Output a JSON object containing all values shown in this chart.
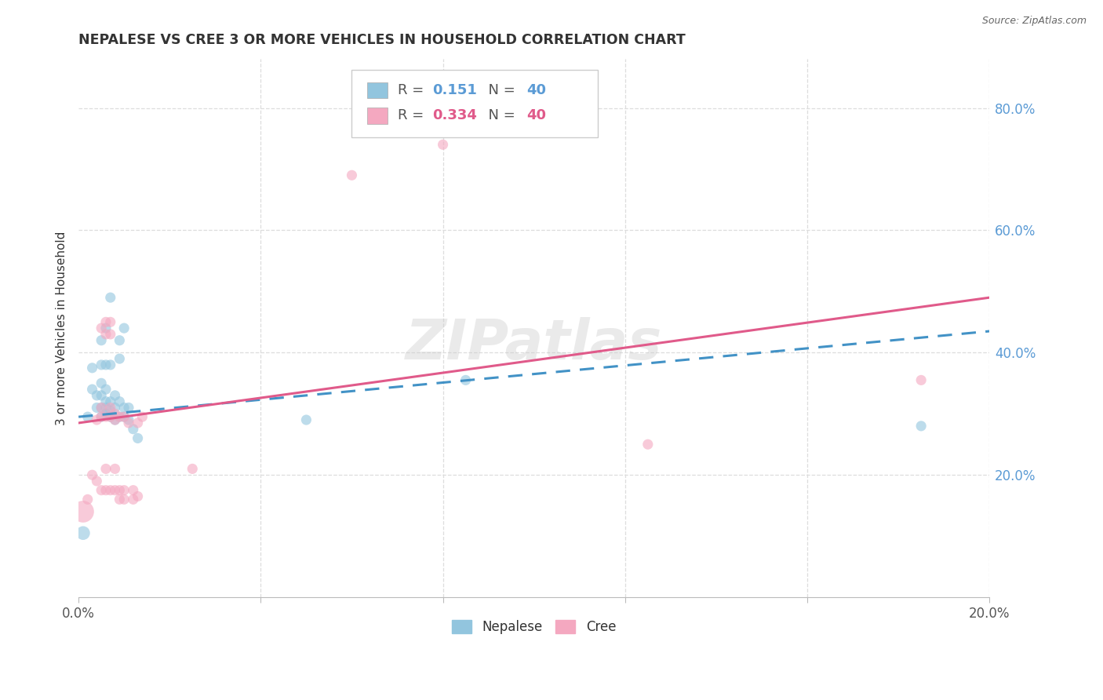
{
  "title": "NEPALESE VS CREE 3 OR MORE VEHICLES IN HOUSEHOLD CORRELATION CHART",
  "source": "Source: ZipAtlas.com",
  "ylabel": "3 or more Vehicles in Household",
  "ytick_labels": [
    "20.0%",
    "40.0%",
    "60.0%",
    "80.0%"
  ],
  "ytick_values": [
    0.2,
    0.4,
    0.6,
    0.8
  ],
  "xmin": 0.0,
  "xmax": 0.2,
  "ymin": 0.0,
  "ymax": 0.88,
  "legend_r_blue": "0.151",
  "legend_r_pink": "0.334",
  "legend_n": "40",
  "blue_color": "#92c5de",
  "pink_color": "#f4a8c0",
  "blue_line_color": "#4292c6",
  "pink_line_color": "#e05a8a",
  "watermark": "ZIPatlas",
  "grid_color": "#dddddd",
  "blue_line_x": [
    0.0,
    0.2
  ],
  "blue_line_y": [
    0.295,
    0.435
  ],
  "pink_line_x": [
    0.0,
    0.2
  ],
  "pink_line_y": [
    0.285,
    0.49
  ],
  "nepalese_points": [
    [
      0.001,
      0.105,
      160
    ],
    [
      0.002,
      0.295,
      90
    ],
    [
      0.003,
      0.34,
      90
    ],
    [
      0.003,
      0.375,
      90
    ],
    [
      0.004,
      0.31,
      90
    ],
    [
      0.004,
      0.33,
      90
    ],
    [
      0.005,
      0.295,
      90
    ],
    [
      0.005,
      0.31,
      90
    ],
    [
      0.005,
      0.33,
      90
    ],
    [
      0.005,
      0.35,
      90
    ],
    [
      0.005,
      0.38,
      90
    ],
    [
      0.005,
      0.42,
      90
    ],
    [
      0.006,
      0.3,
      90
    ],
    [
      0.006,
      0.31,
      90
    ],
    [
      0.006,
      0.32,
      90
    ],
    [
      0.006,
      0.34,
      90
    ],
    [
      0.006,
      0.38,
      90
    ],
    [
      0.006,
      0.44,
      90
    ],
    [
      0.007,
      0.295,
      90
    ],
    [
      0.007,
      0.305,
      90
    ],
    [
      0.007,
      0.32,
      90
    ],
    [
      0.007,
      0.38,
      90
    ],
    [
      0.007,
      0.49,
      90
    ],
    [
      0.008,
      0.29,
      90
    ],
    [
      0.008,
      0.31,
      90
    ],
    [
      0.008,
      0.33,
      90
    ],
    [
      0.009,
      0.295,
      90
    ],
    [
      0.009,
      0.32,
      90
    ],
    [
      0.009,
      0.39,
      90
    ],
    [
      0.009,
      0.42,
      90
    ],
    [
      0.01,
      0.295,
      90
    ],
    [
      0.01,
      0.31,
      90
    ],
    [
      0.01,
      0.44,
      90
    ],
    [
      0.011,
      0.29,
      90
    ],
    [
      0.011,
      0.31,
      90
    ],
    [
      0.012,
      0.275,
      90
    ],
    [
      0.013,
      0.26,
      90
    ],
    [
      0.05,
      0.29,
      90
    ],
    [
      0.085,
      0.355,
      90
    ],
    [
      0.185,
      0.28,
      90
    ]
  ],
  "cree_points": [
    [
      0.001,
      0.14,
      400
    ],
    [
      0.002,
      0.16,
      90
    ],
    [
      0.003,
      0.2,
      90
    ],
    [
      0.004,
      0.19,
      90
    ],
    [
      0.004,
      0.29,
      90
    ],
    [
      0.005,
      0.175,
      90
    ],
    [
      0.005,
      0.295,
      90
    ],
    [
      0.005,
      0.31,
      90
    ],
    [
      0.005,
      0.44,
      90
    ],
    [
      0.006,
      0.175,
      90
    ],
    [
      0.006,
      0.21,
      90
    ],
    [
      0.006,
      0.295,
      90
    ],
    [
      0.006,
      0.43,
      90
    ],
    [
      0.006,
      0.45,
      90
    ],
    [
      0.007,
      0.175,
      90
    ],
    [
      0.007,
      0.295,
      90
    ],
    [
      0.007,
      0.31,
      90
    ],
    [
      0.007,
      0.43,
      90
    ],
    [
      0.007,
      0.45,
      90
    ],
    [
      0.008,
      0.175,
      90
    ],
    [
      0.008,
      0.21,
      90
    ],
    [
      0.008,
      0.29,
      90
    ],
    [
      0.008,
      0.3,
      90
    ],
    [
      0.009,
      0.16,
      90
    ],
    [
      0.009,
      0.175,
      90
    ],
    [
      0.009,
      0.295,
      90
    ],
    [
      0.01,
      0.175,
      90
    ],
    [
      0.01,
      0.295,
      90
    ],
    [
      0.01,
      0.16,
      90
    ],
    [
      0.011,
      0.285,
      90
    ],
    [
      0.012,
      0.16,
      90
    ],
    [
      0.012,
      0.175,
      90
    ],
    [
      0.013,
      0.165,
      90
    ],
    [
      0.013,
      0.285,
      90
    ],
    [
      0.014,
      0.295,
      90
    ],
    [
      0.025,
      0.21,
      90
    ],
    [
      0.06,
      0.69,
      90
    ],
    [
      0.08,
      0.74,
      90
    ],
    [
      0.125,
      0.25,
      90
    ],
    [
      0.185,
      0.355,
      90
    ]
  ]
}
